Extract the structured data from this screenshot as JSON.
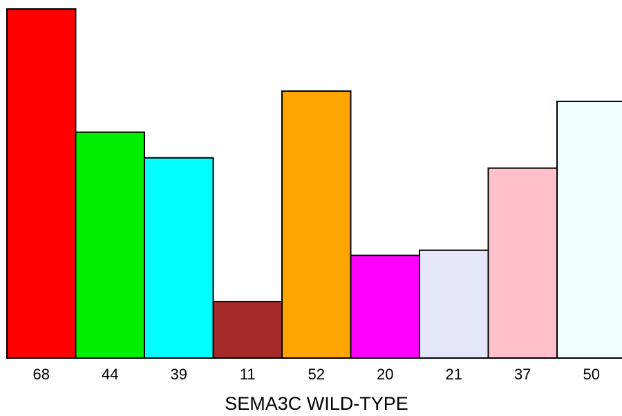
{
  "chart_data": {
    "type": "bar",
    "categories": [
      "68",
      "44",
      "39",
      "11",
      "52",
      "20",
      "21",
      "37",
      "50"
    ],
    "values": [
      68,
      44,
      39,
      11,
      52,
      20,
      21,
      37,
      50
    ],
    "colors": [
      "#ff0000",
      "#00ee00",
      "#00ffff",
      "#a52a2a",
      "#ffa500",
      "#ff00ff",
      "#e6e6fa",
      "#ffc0cb",
      "#f0ffff"
    ],
    "title": "",
    "xlabel": "SEMA3C WILD-TYPE",
    "ylabel": "",
    "ylim": [
      0,
      68
    ],
    "grid": false,
    "legend": "none"
  }
}
